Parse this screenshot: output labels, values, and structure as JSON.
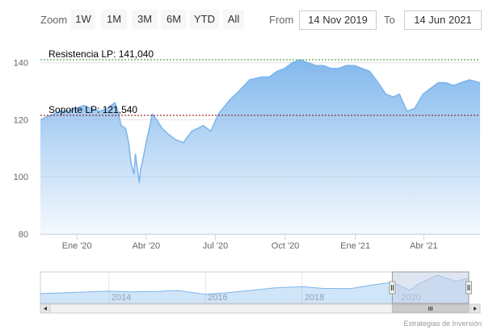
{
  "toolbar": {
    "zoom_label": "Zoom",
    "zoom_buttons": [
      "1W",
      "1M",
      "3M",
      "6M",
      "YTD",
      "All"
    ],
    "from_label": "From",
    "from_value": "14 Nov 2019",
    "to_label": "To",
    "to_value": "14 Jun 2021"
  },
  "credits": "Estrategias de Inversión",
  "colors": {
    "series_line": "#7cb5ec",
    "resistance_line": "#2e8b2e",
    "support_line": "#8b0000",
    "navigator_mask": "#c7d2e6"
  },
  "chart_data": {
    "type": "area",
    "series": [
      {
        "x": [
          "2019-11-14",
          "2019-11-22",
          "2019-12-01",
          "2019-12-10",
          "2019-12-20",
          "2019-12-31",
          "2020-01-10",
          "2020-01-20",
          "2020-01-31",
          "2020-02-10",
          "2020-02-20",
          "2020-02-24",
          "2020-02-28",
          "2020-03-05",
          "2020-03-09",
          "2020-03-12",
          "2020-03-16",
          "2020-03-18",
          "2020-03-20",
          "2020-03-23",
          "2020-03-25",
          "2020-03-27",
          "2020-04-01",
          "2020-04-06",
          "2020-04-09",
          "2020-04-15",
          "2020-04-22",
          "2020-04-30",
          "2020-05-10",
          "2020-05-20",
          "2020-05-31",
          "2020-06-08",
          "2020-06-15",
          "2020-06-25",
          "2020-07-05",
          "2020-07-20",
          "2020-08-01",
          "2020-08-15",
          "2020-08-31",
          "2020-09-10",
          "2020-09-20",
          "2020-09-30",
          "2020-10-10",
          "2020-10-20",
          "2020-10-31",
          "2020-11-10",
          "2020-11-20",
          "2020-11-30",
          "2020-12-10",
          "2020-12-20",
          "2020-12-31",
          "2021-01-10",
          "2021-01-20",
          "2021-01-31",
          "2021-02-10",
          "2021-02-20",
          "2021-02-28",
          "2021-03-05",
          "2021-03-10",
          "2021-03-20",
          "2021-03-31",
          "2021-04-10",
          "2021-04-20",
          "2021-04-30",
          "2021-05-10",
          "2021-05-20",
          "2021-05-31",
          "2021-06-14"
        ],
        "values": [
          120,
          121,
          122,
          123,
          123,
          124,
          125,
          124,
          123,
          124,
          126,
          123,
          118,
          117,
          112,
          105,
          101,
          108,
          104,
          98,
          103,
          105,
          112,
          118,
          122,
          120,
          117,
          115,
          113,
          112,
          116,
          117,
          118,
          116,
          122,
          127,
          130,
          134,
          135,
          135,
          137,
          138,
          140,
          141,
          140,
          139,
          139,
          138,
          138,
          139,
          139,
          138,
          137,
          133,
          129,
          128,
          129,
          126,
          123,
          124,
          129,
          131,
          133,
          133,
          132,
          133,
          134,
          133
        ]
      }
    ],
    "annotations": [
      {
        "label": "Resistencia LP: 141,040",
        "value": 141.04,
        "style": "dashed",
        "color": "#2e8b2e"
      },
      {
        "label": "Soporte LP: 121,540",
        "value": 121.54,
        "style": "dashed",
        "color": "#8b0000"
      }
    ],
    "x_ticks": [
      {
        "date": "2020-01-01",
        "label": "Ene '20"
      },
      {
        "date": "2020-04-01",
        "label": "Abr '20"
      },
      {
        "date": "2020-07-01",
        "label": "Jul '20"
      },
      {
        "date": "2020-10-01",
        "label": "Oct '20"
      },
      {
        "date": "2021-01-01",
        "label": "Ene '21"
      },
      {
        "date": "2021-04-01",
        "label": "Abr '21"
      }
    ],
    "y_ticks": [
      80,
      100,
      120,
      140
    ],
    "xlim": [
      "2019-11-14",
      "2021-06-14"
    ],
    "ylim": [
      80,
      145
    ],
    "grid": true,
    "navigator": {
      "x_ticks": [
        {
          "date": "2014-01-01",
          "label": "2014"
        },
        {
          "date": "2016-01-01",
          "label": "2016"
        },
        {
          "date": "2018-01-01",
          "label": "2018"
        },
        {
          "date": "2020-01-01",
          "label": "2020"
        }
      ],
      "xlim": [
        "2012-08-01",
        "2021-06-14"
      ],
      "ylim": [
        60,
        150
      ],
      "selected_range": [
        "2019-11-14",
        "2021-06-14"
      ],
      "series": {
        "x": [
          "2012-08-01",
          "2013-01-01",
          "2013-06-01",
          "2014-01-01",
          "2014-06-01",
          "2015-01-01",
          "2015-06-01",
          "2016-01-01",
          "2016-06-01",
          "2017-01-01",
          "2017-06-01",
          "2018-01-01",
          "2018-06-01",
          "2019-01-01",
          "2019-06-01",
          "2019-11-14",
          "2020-03-23",
          "2020-06-01",
          "2020-10-20",
          "2021-03-10",
          "2021-06-14"
        ],
        "values": [
          88,
          90,
          92,
          95,
          93,
          94,
          97,
          86,
          90,
          98,
          104,
          108,
          103,
          102,
          112,
          120,
          98,
          116,
          141,
          123,
          133
        ]
      }
    }
  }
}
